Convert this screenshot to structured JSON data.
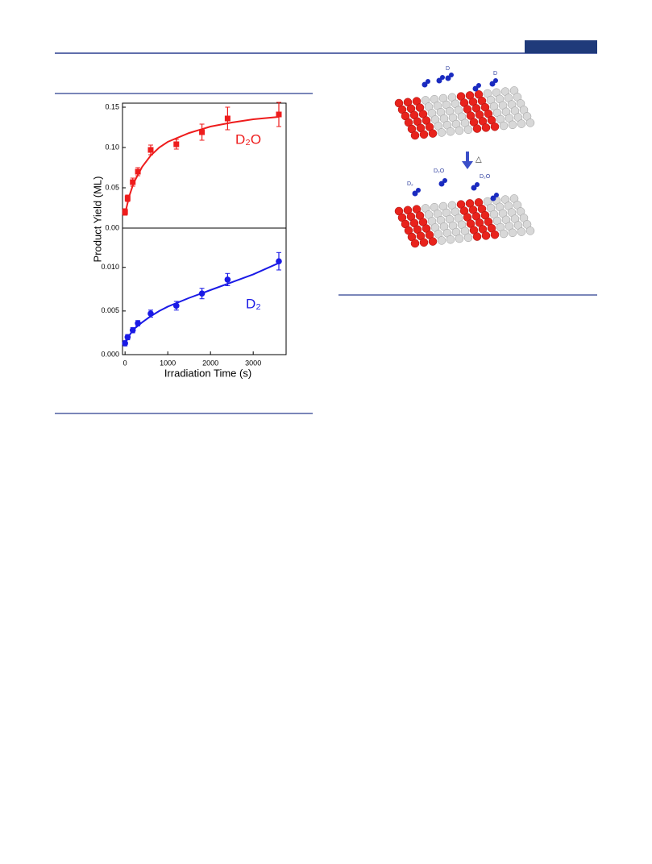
{
  "chart_data": [
    {
      "type": "scatter",
      "ylabel": "Product Yield (ML)",
      "xlim": [
        -60,
        3770
      ],
      "ylim": [
        0,
        0.155
      ],
      "yticks": [
        0.15,
        {
          "value": 0.1,
          "label": "0.10"
        },
        0.05,
        {
          "value": 0,
          "label": "0.00"
        }
      ],
      "series": [
        {
          "name": "D₂O",
          "color": "#ee1c1c",
          "marker": "square",
          "x": [
            0,
            60,
            180,
            300,
            600,
            1200,
            1800,
            2400,
            3600
          ],
          "values": [
            0.02,
            0.037,
            0.057,
            0.07,
            0.097,
            0.104,
            0.119,
            0.136,
            0.141
          ],
          "errors": [
            0.004,
            0.004,
            0.005,
            0.005,
            0.006,
            0.006,
            0.01,
            0.014,
            0.015
          ]
        }
      ],
      "fit": {
        "color": "#ee1c1c",
        "x": [
          0,
          100,
          200,
          400,
          600,
          800,
          1000,
          1500,
          2000,
          2500,
          3000,
          3600
        ],
        "values": [
          0.018,
          0.04,
          0.056,
          0.076,
          0.09,
          0.1,
          0.107,
          0.118,
          0.126,
          0.131,
          0.135,
          0.138
        ]
      }
    },
    {
      "type": "scatter",
      "xlabel": "Irradiation Time (s)",
      "xlim": [
        -60,
        3770
      ],
      "ylim": [
        0,
        0.0145
      ],
      "xticks": [
        0,
        1000,
        2000,
        3000
      ],
      "yticks": [
        {
          "value": 0.01,
          "label": "0.010"
        },
        0.005,
        {
          "value": 0,
          "label": "0.000"
        }
      ],
      "series": [
        {
          "name": "D₂",
          "color": "#1a1ae6",
          "marker": "circle",
          "x": [
            0,
            60,
            180,
            300,
            600,
            1200,
            1800,
            2400,
            3600
          ],
          "values": [
            0.0013,
            0.002,
            0.0028,
            0.0036,
            0.0047,
            0.0056,
            0.007,
            0.0086,
            0.0107
          ],
          "errors": [
            0.0003,
            0.0003,
            0.0003,
            0.0003,
            0.0004,
            0.0005,
            0.0006,
            0.0007,
            0.001
          ]
        }
      ],
      "fit": {
        "color": "#1a1ae6",
        "x": [
          0,
          100,
          200,
          400,
          600,
          800,
          1000,
          1500,
          2000,
          2500,
          3000,
          3600
        ],
        "values": [
          0.0013,
          0.0022,
          0.0029,
          0.0037,
          0.0044,
          0.005,
          0.0055,
          0.0065,
          0.0074,
          0.0083,
          0.0092,
          0.0105
        ]
      }
    }
  ],
  "diagram": {
    "labels": [
      "D",
      "D",
      "△",
      "D₂",
      "D₂O",
      "D₂O"
    ]
  }
}
